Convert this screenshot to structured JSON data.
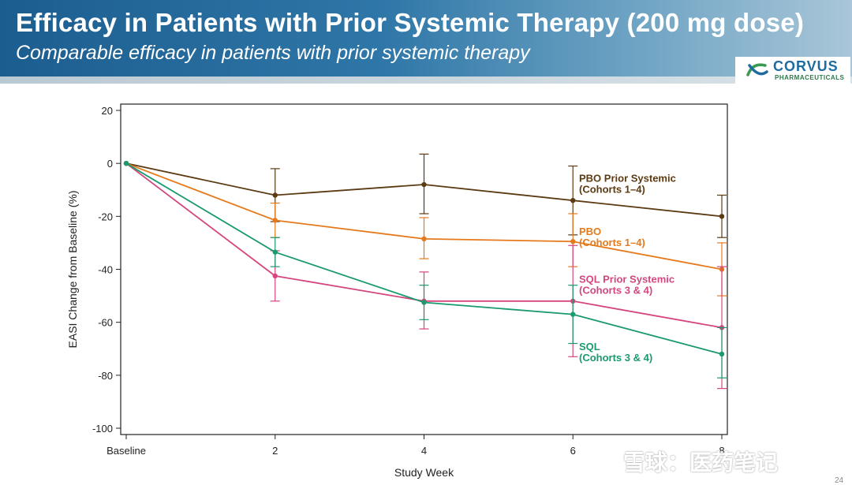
{
  "slide": {
    "title": "Efficacy in Patients with Prior Systemic Therapy (200 mg dose)",
    "subtitle": "Comparable efficacy in patients with prior systemic therapy",
    "page_number": "24",
    "watermark": "雪球：医药笔记"
  },
  "logo": {
    "name": "CORVUS",
    "subtitle": "PHARMACEUTICALS",
    "colors": {
      "name": "#1e6c9f",
      "mark_green": "#3a9a4f",
      "mark_blue": "#1e6c9f"
    }
  },
  "chart_data": {
    "type": "line",
    "title": "",
    "xlabel": "Study Week",
    "ylabel": "EASI Change from Baseline (%)",
    "x": [
      0,
      2,
      4,
      6,
      8
    ],
    "x_tick_labels": [
      "Baseline",
      "2",
      "4",
      "6",
      "8"
    ],
    "ylim": [
      -100,
      20
    ],
    "y_ticks": [
      20,
      0,
      -20,
      -40,
      -60,
      -80,
      -100
    ],
    "grid": false,
    "legend": "inline labels at right",
    "series": [
      {
        "name": "PBO Prior Systemic (Cohorts 1–4)",
        "color": "#5c3a12",
        "values": [
          0,
          -12,
          -8,
          -14,
          -20
        ],
        "error_low": [
          null,
          -22,
          -19,
          -27,
          -28
        ],
        "error_high": [
          null,
          -2,
          3.5,
          -1,
          -12
        ]
      },
      {
        "name": "PBO (Cohorts 1–4)",
        "color": "#e57a1c",
        "values": [
          0,
          -21.5,
          -28.5,
          -29.5,
          -40
        ],
        "error_low": [
          null,
          -28,
          -36,
          -39,
          -50
        ],
        "error_high": [
          null,
          -15,
          -20.5,
          -19,
          -30
        ]
      },
      {
        "name": "SQL Prior Systemic (Cohorts 3 & 4)",
        "color": "#d4467f",
        "values": [
          0,
          -42.5,
          -52,
          -52,
          -62
        ],
        "error_low": [
          null,
          -52,
          -62.5,
          -73,
          -85
        ],
        "error_high": [
          null,
          -33,
          -41,
          -31,
          -39
        ]
      },
      {
        "name": "SQL (Cohorts 3 & 4)",
        "color": "#1b9a6e",
        "values": [
          0,
          -33.5,
          -52.5,
          -57,
          -72
        ],
        "error_low": [
          null,
          -39,
          -59,
          -68,
          -81
        ],
        "error_high": [
          null,
          -28,
          -46,
          -46,
          -62
        ]
      }
    ]
  }
}
